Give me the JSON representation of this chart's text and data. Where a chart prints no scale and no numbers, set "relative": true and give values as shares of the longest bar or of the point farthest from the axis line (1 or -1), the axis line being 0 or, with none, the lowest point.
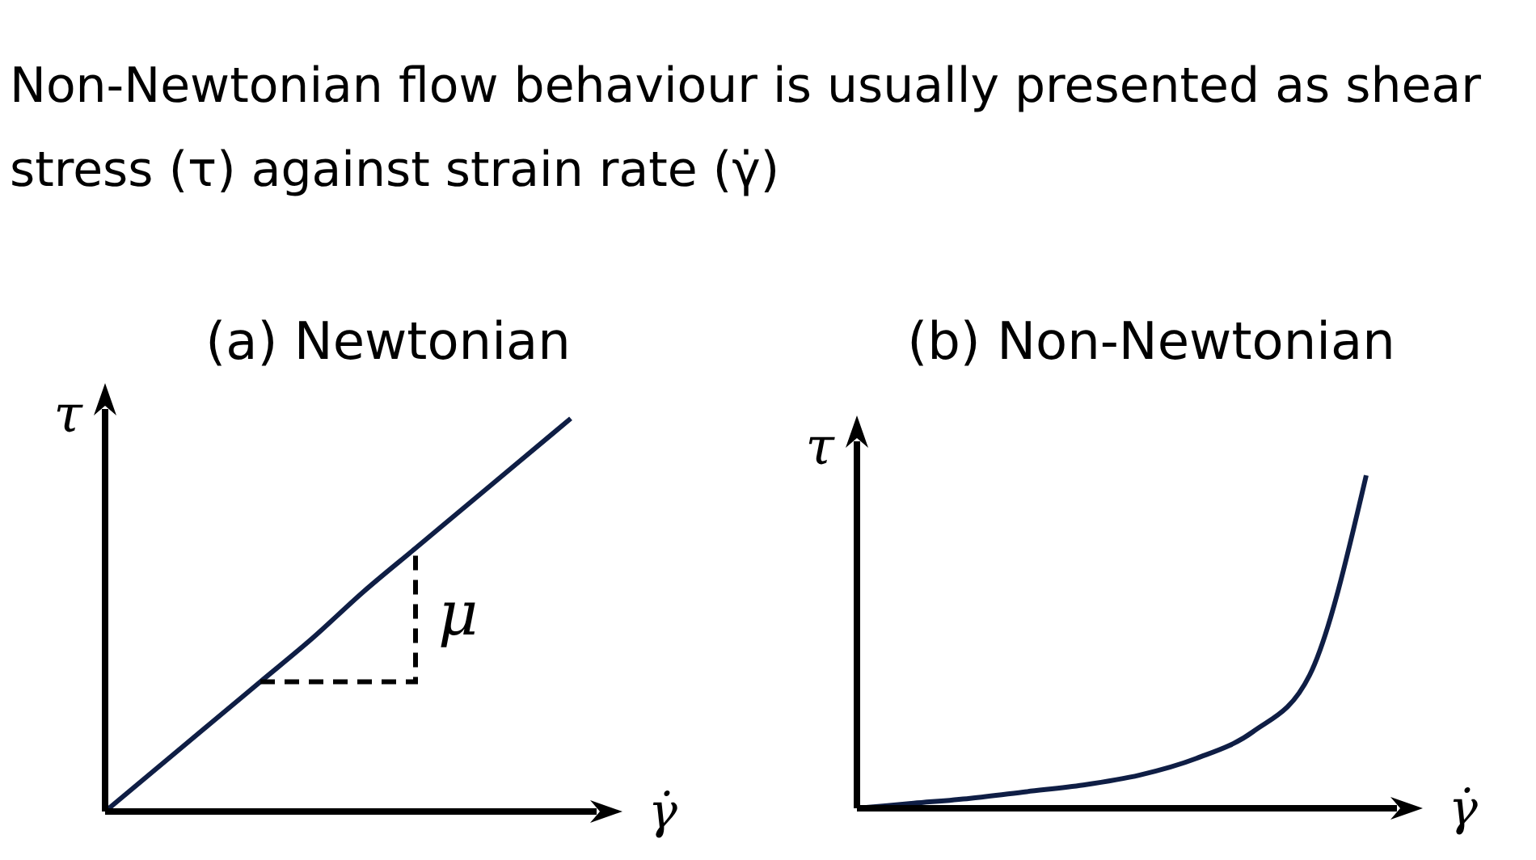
{
  "chart_data": [
    {
      "type": "other",
      "title": "Non-Newtonian flow behaviour is usually presented as shear stress (τ) against strain rate (γ̇)"
    },
    {
      "type": "line",
      "title": "(a) Newtonian",
      "xlabel": "γ̇",
      "ylabel": "τ",
      "relative": true,
      "color": "#0f1e45",
      "annotations": [
        "μ"
      ],
      "categories": [
        null,
        null,
        null,
        null,
        null,
        null,
        null,
        null,
        null,
        null,
        null
      ],
      "values": [
        0,
        0.11,
        0.22,
        0.33,
        0.44,
        0.56,
        0.67,
        0.78,
        0.89,
        1,
        null
      ]
    },
    {
      "type": "line",
      "title": "(b) Non-Newtonian",
      "xlabel": "γ̇",
      "ylabel": "τ",
      "relative": true,
      "color": "#0f1e45",
      "categories": [
        null,
        null,
        null,
        null,
        null,
        null,
        null,
        null,
        null,
        null,
        null
      ],
      "values": [
        0,
        0.015,
        0.03,
        0.05,
        0.07,
        0.1,
        0.15,
        0.23,
        0.4,
        1,
        null
      ]
    }
  ]
}
